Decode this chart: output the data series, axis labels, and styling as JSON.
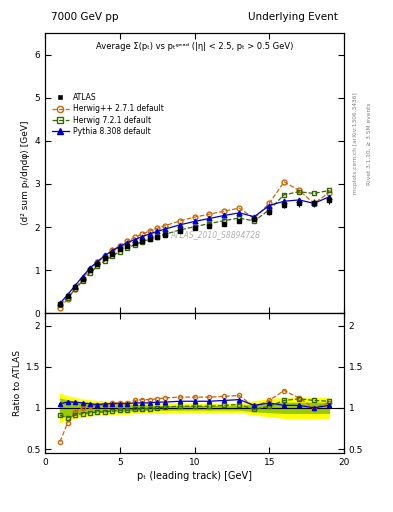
{
  "title_left": "7000 GeV pp",
  "title_right": "Underlying Event",
  "ylabel_main": "⟨d² sum pₜ/dηdφ⟩ [GeV]",
  "ylabel_ratio": "Ratio to ATLAS",
  "xlabel": "pₜ (leading track) [GeV]",
  "subtitle": "Average Σ(pₜ) vs pₜᵍᵉᵃᵈ (|η| < 2.5, pₜ > 0.5 GeV)",
  "watermark": "ATLAS_2010_S8894728",
  "right_label_top": "Rivet 3.1.10, ≥ 3.5M events",
  "right_label_bot": "mcplots.cern.ch [arXiv:1306.3436]",
  "ylim_main": [
    0,
    6.5
  ],
  "ylim_ratio": [
    0.45,
    2.15
  ],
  "xlim": [
    0,
    20
  ],
  "yticks_main": [
    0,
    1,
    2,
    3,
    4,
    5,
    6
  ],
  "yticks_ratio": [
    0.5,
    1.0,
    1.5,
    2.0
  ],
  "xticks": [
    0,
    5,
    10,
    15,
    20
  ],
  "atlas_x": [
    1.0,
    1.5,
    2.0,
    2.5,
    3.0,
    3.5,
    4.0,
    4.5,
    5.0,
    5.5,
    6.0,
    6.5,
    7.0,
    7.5,
    8.0,
    9.0,
    10.0,
    11.0,
    12.0,
    13.0,
    14.0,
    15.0,
    16.0,
    17.0,
    18.0,
    19.0
  ],
  "atlas_y": [
    0.22,
    0.4,
    0.6,
    0.8,
    1.0,
    1.15,
    1.28,
    1.38,
    1.48,
    1.57,
    1.62,
    1.68,
    1.73,
    1.78,
    1.82,
    1.9,
    1.97,
    2.03,
    2.08,
    2.13,
    2.18,
    2.35,
    2.52,
    2.55,
    2.55,
    2.63
  ],
  "atlas_yerr": [
    0.02,
    0.02,
    0.02,
    0.02,
    0.02,
    0.02,
    0.02,
    0.02,
    0.02,
    0.02,
    0.02,
    0.02,
    0.02,
    0.02,
    0.02,
    0.02,
    0.03,
    0.03,
    0.03,
    0.04,
    0.04,
    0.06,
    0.08,
    0.08,
    0.09,
    0.1
  ],
  "herwig_x": [
    1.0,
    1.5,
    2.0,
    2.5,
    3.0,
    3.5,
    4.0,
    4.5,
    5.0,
    5.5,
    6.0,
    6.5,
    7.0,
    7.5,
    8.0,
    9.0,
    10.0,
    11.0,
    12.0,
    13.0,
    14.0,
    15.0,
    16.0,
    17.0,
    18.0,
    19.0
  ],
  "herwig_y": [
    0.13,
    0.33,
    0.57,
    0.8,
    1.02,
    1.18,
    1.33,
    1.46,
    1.57,
    1.67,
    1.76,
    1.84,
    1.91,
    1.97,
    2.03,
    2.14,
    2.23,
    2.3,
    2.37,
    2.44,
    2.2,
    2.55,
    3.05,
    2.85,
    2.55,
    2.8
  ],
  "herwig7_x": [
    1.0,
    1.5,
    2.0,
    2.5,
    3.0,
    3.5,
    4.0,
    4.5,
    5.0,
    5.5,
    6.0,
    6.5,
    7.0,
    7.5,
    8.0,
    9.0,
    10.0,
    11.0,
    12.0,
    13.0,
    14.0,
    15.0,
    16.0,
    17.0,
    18.0,
    19.0
  ],
  "herwig7_y": [
    0.2,
    0.36,
    0.55,
    0.75,
    0.94,
    1.09,
    1.22,
    1.33,
    1.43,
    1.52,
    1.59,
    1.66,
    1.72,
    1.78,
    1.83,
    1.93,
    2.01,
    2.08,
    2.15,
    2.21,
    2.14,
    2.4,
    2.75,
    2.82,
    2.78,
    2.85
  ],
  "pythia_x": [
    1.0,
    1.5,
    2.0,
    2.5,
    3.0,
    3.5,
    4.0,
    4.5,
    5.0,
    5.5,
    6.0,
    6.5,
    7.0,
    7.5,
    8.0,
    9.0,
    10.0,
    11.0,
    12.0,
    13.0,
    14.0,
    15.0,
    16.0,
    17.0,
    18.0,
    19.0
  ],
  "pythia_y": [
    0.23,
    0.43,
    0.64,
    0.85,
    1.05,
    1.2,
    1.34,
    1.45,
    1.55,
    1.64,
    1.71,
    1.78,
    1.84,
    1.9,
    1.95,
    2.05,
    2.13,
    2.2,
    2.27,
    2.33,
    2.24,
    2.5,
    2.6,
    2.63,
    2.55,
    2.7
  ],
  "herwig_ratio": [
    0.59,
    0.82,
    0.95,
    1.0,
    1.02,
    1.03,
    1.04,
    1.06,
    1.06,
    1.06,
    1.09,
    1.1,
    1.1,
    1.11,
    1.12,
    1.13,
    1.13,
    1.13,
    1.14,
    1.15,
    1.01,
    1.09,
    1.21,
    1.12,
    1.0,
    1.06
  ],
  "herwig7_ratio": [
    0.91,
    0.88,
    0.91,
    0.93,
    0.94,
    0.95,
    0.95,
    0.96,
    0.97,
    0.97,
    0.98,
    0.99,
    0.99,
    1.0,
    1.01,
    1.02,
    1.02,
    1.02,
    1.03,
    1.04,
    0.98,
    1.02,
    1.09,
    1.11,
    1.09,
    1.08
  ],
  "pythia_ratio": [
    1.05,
    1.07,
    1.07,
    1.06,
    1.05,
    1.04,
    1.05,
    1.05,
    1.05,
    1.05,
    1.06,
    1.06,
    1.06,
    1.07,
    1.07,
    1.08,
    1.08,
    1.08,
    1.09,
    1.1,
    1.03,
    1.06,
    1.03,
    1.03,
    1.0,
    1.03
  ],
  "band_yellow_lo": [
    0.83,
    0.86,
    0.88,
    0.9,
    0.91,
    0.92,
    0.92,
    0.93,
    0.93,
    0.93,
    0.94,
    0.94,
    0.94,
    0.94,
    0.94,
    0.95,
    0.95,
    0.95,
    0.95,
    0.95,
    0.92,
    0.9,
    0.88,
    0.88,
    0.88,
    0.88
  ],
  "band_yellow_hi": [
    1.17,
    1.14,
    1.12,
    1.1,
    1.09,
    1.08,
    1.08,
    1.07,
    1.07,
    1.07,
    1.06,
    1.06,
    1.06,
    1.06,
    1.06,
    1.05,
    1.05,
    1.05,
    1.05,
    1.05,
    1.08,
    1.1,
    1.12,
    1.12,
    1.12,
    1.12
  ],
  "band_green_lo": [
    0.89,
    0.91,
    0.93,
    0.95,
    0.95,
    0.96,
    0.96,
    0.97,
    0.97,
    0.97,
    0.97,
    0.97,
    0.98,
    0.98,
    0.98,
    0.98,
    0.98,
    0.98,
    0.98,
    0.98,
    0.96,
    0.95,
    0.94,
    0.94,
    0.94,
    0.94
  ],
  "band_green_hi": [
    1.11,
    1.09,
    1.07,
    1.05,
    1.05,
    1.04,
    1.04,
    1.03,
    1.03,
    1.03,
    1.03,
    1.03,
    1.02,
    1.02,
    1.02,
    1.02,
    1.02,
    1.02,
    1.02,
    1.02,
    1.04,
    1.05,
    1.06,
    1.06,
    1.06,
    1.06
  ],
  "color_atlas": "#000000",
  "color_herwig": "#cc6600",
  "color_herwig7": "#336600",
  "color_pythia": "#0000cc",
  "color_band_yellow": "#ffff00",
  "color_band_green": "#99cc00"
}
